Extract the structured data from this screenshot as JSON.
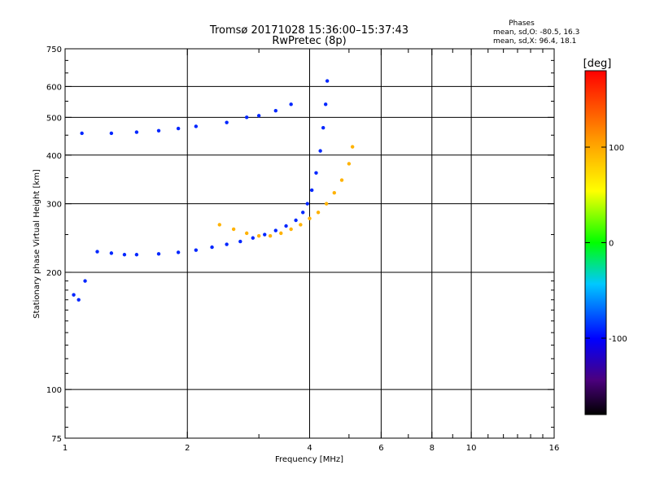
{
  "chart_data": {
    "type": "scatter",
    "title": "Tromsø 20171028 15:36:00–15:37:43",
    "subtitle": "RwPretec (8p)",
    "xlabel": "Frequency [MHz]",
    "ylabel": "Stationary phase Virtual Height [km]",
    "x_scale": "log",
    "y_scale": "log",
    "xlim": [
      1,
      16
    ],
    "ylim": [
      75,
      750
    ],
    "x_ticks": [
      1,
      2,
      4,
      6,
      8,
      10,
      16
    ],
    "y_ticks": [
      75,
      100,
      200,
      300,
      400,
      500,
      600,
      750
    ],
    "grid": true,
    "stats": {
      "heading": "Phases",
      "line_o": "mean, sd,O: -80.5, 16.3",
      "line_x": "mean, sd,X:  96.4, 18.1"
    },
    "colorbar": {
      "label": "[deg]",
      "min": -180,
      "max": 180,
      "ticks": [
        -100,
        0,
        100
      ],
      "tick_labels": [
        "-100",
        "0",
        "100"
      ]
    },
    "series": [
      {
        "mode": "O",
        "phase_deg": -90,
        "points": [
          [
            1.2,
            226
          ],
          [
            1.3,
            224
          ],
          [
            1.4,
            222
          ],
          [
            1.5,
            222
          ],
          [
            1.7,
            223
          ],
          [
            1.9,
            225
          ],
          [
            2.1,
            228
          ],
          [
            2.3,
            232
          ],
          [
            2.5,
            236
          ],
          [
            2.7,
            240
          ],
          [
            2.9,
            245
          ],
          [
            3.1,
            250
          ],
          [
            3.3,
            256
          ],
          [
            3.5,
            263
          ],
          [
            3.7,
            272
          ],
          [
            3.85,
            285
          ],
          [
            3.95,
            300
          ],
          [
            4.05,
            325
          ],
          [
            4.15,
            360
          ],
          [
            4.25,
            410
          ],
          [
            4.32,
            470
          ],
          [
            4.38,
            540
          ],
          [
            4.42,
            620
          ],
          [
            1.1,
            455
          ],
          [
            1.3,
            455
          ],
          [
            1.5,
            458
          ],
          [
            1.7,
            462
          ],
          [
            1.9,
            468
          ],
          [
            2.1,
            474
          ],
          [
            2.5,
            485
          ],
          [
            2.8,
            500
          ],
          [
            3.0,
            505
          ],
          [
            3.3,
            520
          ],
          [
            3.6,
            540
          ],
          [
            1.05,
            175
          ],
          [
            1.08,
            170
          ],
          [
            1.12,
            190
          ]
        ]
      },
      {
        "mode": "X",
        "phase_deg": 95,
        "points": [
          [
            2.4,
            265
          ],
          [
            2.6,
            258
          ],
          [
            2.8,
            252
          ],
          [
            3.0,
            248
          ],
          [
            3.2,
            248
          ],
          [
            3.4,
            252
          ],
          [
            3.6,
            258
          ],
          [
            3.8,
            265
          ],
          [
            4.0,
            275
          ],
          [
            4.2,
            285
          ],
          [
            4.4,
            300
          ],
          [
            4.6,
            320
          ],
          [
            4.8,
            345
          ],
          [
            5.0,
            380
          ],
          [
            5.1,
            420
          ]
        ]
      }
    ]
  }
}
